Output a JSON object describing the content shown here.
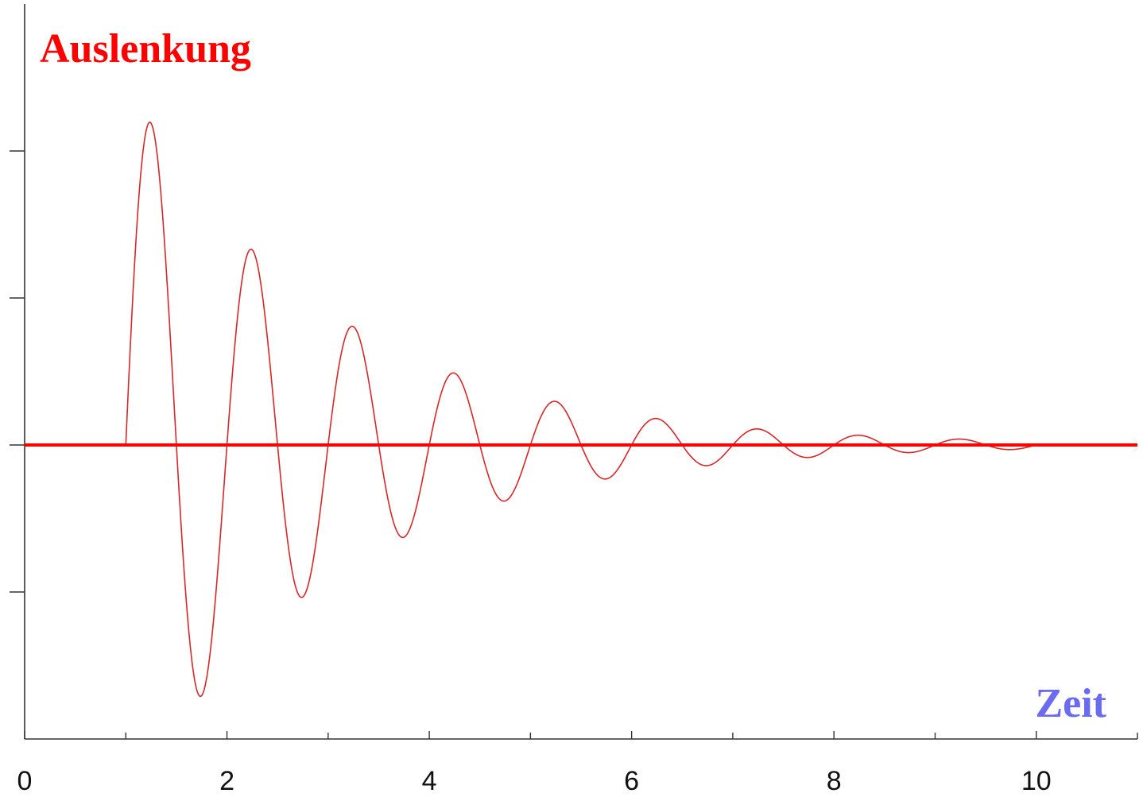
{
  "chart_data": {
    "type": "line",
    "title": "",
    "ylabel": "Auslenkung",
    "xlabel": "Zeit",
    "xlim": [
      0,
      11
    ],
    "ylim": [
      -1.0,
      1.5
    ],
    "x_ticks_major": [
      0,
      2,
      4,
      6,
      8,
      10
    ],
    "x_tick_labels": [
      "0",
      "2",
      "4",
      "6",
      "8",
      "10"
    ],
    "x_ticks_minor": [
      1,
      3,
      5,
      7,
      9,
      11
    ],
    "y_ticks": [
      -0.5,
      0,
      0.5,
      1.0
    ],
    "y_tick_labels_shown": false,
    "grid": false,
    "series": [
      {
        "role": "damped oscillation",
        "color": "#d62828",
        "t_start": 1,
        "t_end": 10,
        "amplitude": 1.24,
        "damping_per_unit": 0.5,
        "period": 1.0,
        "phase": "sine starting at zero",
        "peaks": [
          {
            "x": 1.25,
            "y": 1.07
          },
          {
            "x": 1.75,
            "y": -0.83
          },
          {
            "x": 2.25,
            "y": 0.65
          },
          {
            "x": 2.75,
            "y": -0.5
          },
          {
            "x": 3.25,
            "y": 0.4
          },
          {
            "x": 3.75,
            "y": -0.3
          },
          {
            "x": 4.25,
            "y": 0.24
          },
          {
            "x": 4.75,
            "y": -0.18
          },
          {
            "x": 5.25,
            "y": 0.15
          },
          {
            "x": 5.75,
            "y": -0.11
          },
          {
            "x": 6.25,
            "y": 0.09
          },
          {
            "x": 6.75,
            "y": -0.06
          },
          {
            "x": 7.25,
            "y": 0.05
          },
          {
            "x": 7.75,
            "y": -0.04
          },
          {
            "x": 8.25,
            "y": 0.03
          },
          {
            "x": 8.75,
            "y": -0.02
          },
          {
            "x": 9.25,
            "y": 0.02
          },
          {
            "x": 9.75,
            "y": -0.01
          }
        ]
      },
      {
        "role": "equilibrium line",
        "color": "#ff0000",
        "y": 0
      }
    ],
    "colors": {
      "ylabel": "#ff0000",
      "xlabel": "#6b6bf0",
      "curve": "#d62828",
      "baseline": "#ff0000",
      "axes": "#333333"
    }
  }
}
